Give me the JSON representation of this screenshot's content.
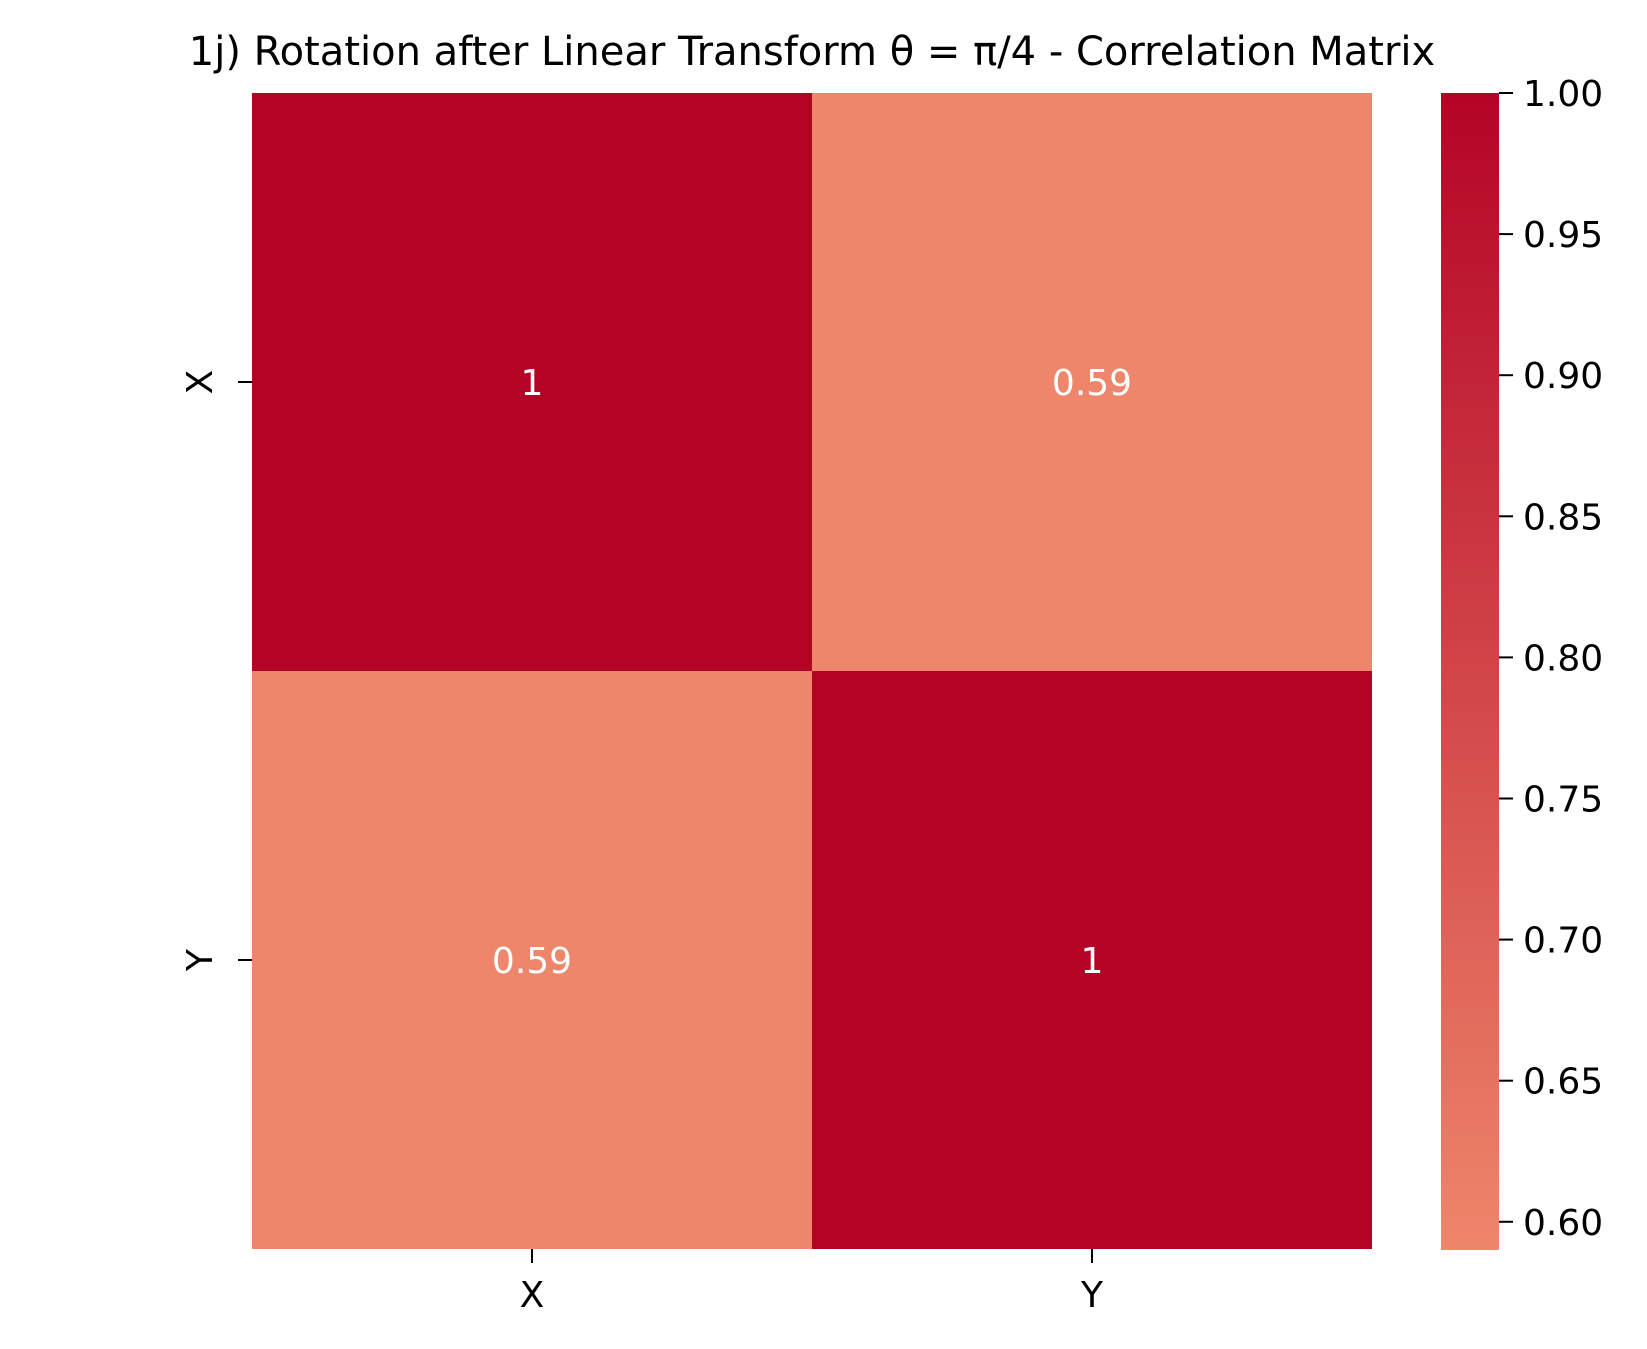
{
  "chart_data": {
    "type": "heatmap",
    "title": "1j) Rotation after Linear Transform θ = π/4 - Correlation Matrix",
    "x_labels": [
      "X",
      "Y"
    ],
    "y_labels": [
      "X",
      "Y"
    ],
    "matrix": [
      [
        1.0,
        0.59
      ],
      [
        0.59,
        1.0
      ]
    ],
    "annotations": [
      [
        "1",
        "0.59"
      ],
      [
        "0.59",
        "1"
      ]
    ],
    "colorbar": {
      "vmin": 0.59,
      "vmax": 1.0,
      "ticks": [
        0.6,
        0.65,
        0.7,
        0.75,
        0.8,
        0.85,
        0.9,
        0.95,
        1.0
      ],
      "tick_labels": [
        "0.60",
        "0.65",
        "0.70",
        "0.75",
        "0.80",
        "0.85",
        "0.90",
        "0.95",
        "1.00"
      ]
    },
    "colors": {
      "low": "#ee866b",
      "high": "#b40426",
      "annotation_text": "#ffffff"
    }
  }
}
